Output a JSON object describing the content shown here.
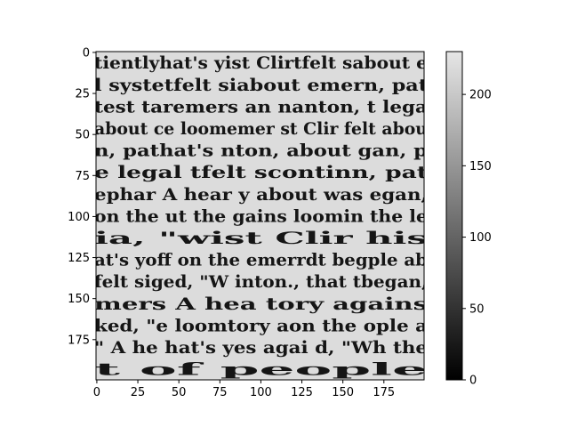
{
  "chart_data": {
    "type": "heatmap",
    "title": "",
    "xlabel": "",
    "ylabel": "",
    "description_image": "grayscale image of a collage of overlapping cut-out newspaper text",
    "image_size": [
      200,
      200
    ],
    "xlim": [
      0,
      199
    ],
    "ylim": [
      199,
      0
    ],
    "x_ticks": [
      0,
      25,
      50,
      75,
      100,
      125,
      150,
      175
    ],
    "y_ticks": [
      0,
      25,
      50,
      75,
      100,
      125,
      150,
      175
    ],
    "colormap": "gray",
    "colorbar": {
      "min": 0,
      "max": 230,
      "ticks": [
        0,
        50,
        100,
        150,
        200
      ]
    },
    "image_text_fragments": [
      "tientlyhat's yist Clirtfelt sabout e",
      "l systetfelt siabout emern, pat",
      "test taremers an nanton, t lega",
      "about ce loomemer st Clir felt abou",
      "n, pathat's nton, about gan, p",
      "e legal tfelt scontinn, pat",
      "ephar A hear y about was egan,",
      "on the ut the gains loomin the le",
      "ia, \"wist Clir his",
      "at's yoff on the emerrdt begple ab",
      "felt siged, \"W inton., that tbegan,",
      "mers A hea tory agains",
      "ked, \"e loomtory aon the ople a",
      "\" A he hat's yes agai d, \"Wh the",
      "t of people"
    ]
  },
  "colors": {
    "image_background": "#dcdcdc",
    "text_ink": "#151515",
    "axis": "#000000"
  }
}
